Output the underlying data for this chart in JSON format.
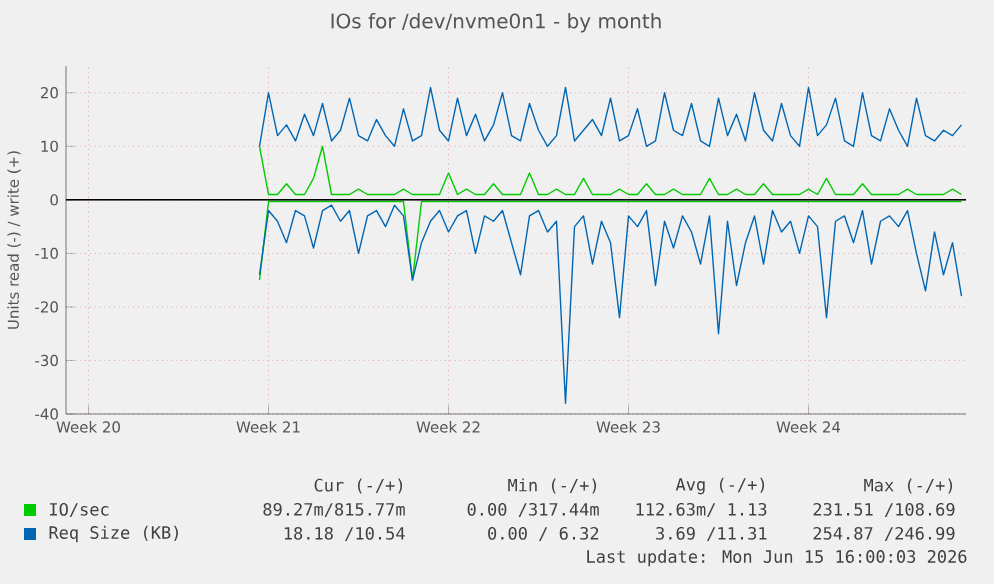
{
  "chart_data": {
    "type": "line",
    "title": "IOs for /dev/nvme0n1 - by month",
    "ylabel": "Units read (-) / write (+)",
    "categories": [
      null,
      null,
      "Week 20",
      null,
      null,
      null,
      null,
      null,
      null,
      null,
      null,
      null,
      null,
      null,
      null,
      null,
      null,
      null,
      null,
      null,
      null,
      null,
      "Week 21",
      null,
      null,
      null,
      null,
      null,
      null,
      null,
      null,
      null,
      null,
      null,
      null,
      null,
      null,
      null,
      null,
      null,
      null,
      null,
      "Week 22",
      null,
      null,
      null,
      null,
      null,
      null,
      null,
      null,
      null,
      null,
      null,
      null,
      null,
      null,
      null,
      null,
      null,
      null,
      null,
      "Week 23",
      null,
      null,
      null,
      null,
      null,
      null,
      null,
      null,
      null,
      null,
      null,
      null,
      null,
      null,
      null,
      null,
      null,
      null,
      null,
      "Week 24",
      null,
      null,
      null,
      null,
      null,
      null,
      null,
      null,
      null,
      null,
      null,
      null,
      null,
      null,
      null,
      null,
      null
    ],
    "series": [
      {
        "name": "IO/sec",
        "color": "#00cc00",
        "values": [
          null,
          null,
          null,
          null,
          null,
          null,
          null,
          null,
          null,
          null,
          null,
          null,
          null,
          null,
          null,
          null,
          null,
          null,
          null,
          null,
          null,
          10,
          1,
          1,
          3,
          1,
          1,
          4,
          10,
          1,
          1,
          1,
          2,
          1,
          1,
          1,
          1,
          2,
          1,
          1,
          1,
          1,
          5,
          1,
          2,
          1,
          1,
          3,
          1,
          1,
          1,
          5,
          1,
          1,
          2,
          1,
          1,
          4,
          1,
          1,
          1,
          2,
          1,
          1,
          3,
          1,
          1,
          2,
          1,
          1,
          1,
          4,
          1,
          1,
          2,
          1,
          1,
          3,
          1,
          1,
          1,
          1,
          2,
          1,
          4,
          1,
          1,
          1,
          3,
          1,
          1,
          1,
          1,
          2,
          1,
          1,
          1,
          1,
          2,
          1
        ]
      },
      {
        "color": "#00cc00",
        "values": [
          null,
          null,
          null,
          null,
          null,
          null,
          null,
          null,
          null,
          null,
          null,
          null,
          null,
          null,
          null,
          null,
          null,
          null,
          null,
          null,
          null,
          -15,
          -0.3,
          -0.3,
          -0.3,
          -0.3,
          -0.3,
          -0.3,
          -0.3,
          -0.3,
          -0.3,
          -0.3,
          -0.3,
          -0.3,
          -0.3,
          -0.3,
          -0.3,
          -0.3,
          -15,
          -0.3,
          -0.3,
          -0.3,
          -0.3,
          -0.3,
          -0.3,
          -0.3,
          -0.3,
          -0.3,
          -0.3,
          -0.3,
          -0.3,
          -0.3,
          -0.3,
          -0.3,
          -0.3,
          -0.3,
          -0.3,
          -0.3,
          -0.3,
          -0.3,
          -0.3,
          -0.3,
          -0.3,
          -0.3,
          -0.3,
          -0.3,
          -0.3,
          -0.3,
          -0.3,
          -0.3,
          -0.3,
          -0.3,
          -0.3,
          -0.3,
          -0.3,
          -0.3,
          -0.3,
          -0.3,
          -0.3,
          -0.3,
          -0.3,
          -0.3,
          -0.3,
          -0.3,
          -0.3,
          -0.3,
          -0.3,
          -0.3,
          -0.3,
          -0.3,
          -0.3,
          -0.3,
          -0.3,
          -0.3,
          -0.3,
          -0.3,
          -0.3,
          -0.3,
          -0.3,
          -0.3
        ]
      },
      {
        "name": "Req Size (KB)",
        "color": "#0066b3",
        "values": [
          null,
          null,
          null,
          null,
          null,
          null,
          null,
          null,
          null,
          null,
          null,
          null,
          null,
          null,
          null,
          null,
          null,
          null,
          null,
          null,
          null,
          10,
          20,
          12,
          14,
          11,
          16,
          12,
          18,
          11,
          13,
          19,
          12,
          11,
          15,
          12,
          10,
          17,
          11,
          12,
          21,
          13,
          11,
          19,
          12,
          16,
          11,
          14,
          20,
          12,
          11,
          18,
          13,
          10,
          12,
          21,
          11,
          13,
          15,
          12,
          19,
          11,
          12,
          17,
          10,
          11,
          20,
          13,
          12,
          18,
          11,
          10,
          19,
          12,
          16,
          11,
          20,
          13,
          11,
          18,
          12,
          10,
          21,
          12,
          14,
          19,
          11,
          10,
          20,
          12,
          11,
          17,
          13,
          10,
          19,
          12,
          11,
          13,
          12,
          14
        ]
      },
      {
        "color": "#0066b3",
        "values": [
          null,
          null,
          null,
          null,
          null,
          null,
          null,
          null,
          null,
          null,
          null,
          null,
          null,
          null,
          null,
          null,
          null,
          null,
          null,
          null,
          null,
          -14,
          -2,
          -4,
          -8,
          -2,
          -3,
          -9,
          -2,
          -1,
          -4,
          -2,
          -10,
          -3,
          -2,
          -5,
          -1,
          -3,
          -15,
          -8,
          -4,
          -2,
          -6,
          -3,
          -2,
          -10,
          -3,
          -4,
          -2,
          -8,
          -14,
          -3,
          -2,
          -6,
          -4,
          -38,
          -5,
          -3,
          -12,
          -4,
          -8,
          -22,
          -3,
          -5,
          -2,
          -16,
          -4,
          -9,
          -3,
          -6,
          -12,
          -3,
          -25,
          -4,
          -16,
          -8,
          -3,
          -12,
          -2,
          -6,
          -4,
          -10,
          -3,
          -5,
          -22,
          -4,
          -3,
          -8,
          -2,
          -12,
          -4,
          -3,
          -5,
          -2,
          -10,
          -17,
          -6,
          -14,
          -8,
          -18
        ]
      }
    ],
    "ylim": [
      -40,
      25
    ],
    "yticks": [
      -40,
      -30,
      -20,
      -10,
      0,
      10,
      20
    ],
    "grid": true,
    "legend": "bottom",
    "ref_lines": [
      {
        "axis": "y",
        "value": 0,
        "color": "#000000"
      }
    ],
    "annotations": [
      "Cur (-/+)",
      "Min (-/+)",
      "Avg (-/+)",
      "Max (-/+)",
      "89.27m/815.77m",
      "0.00 /317.44m",
      "112.63m/ 1.13",
      "231.51 /108.69",
      "18.18 /10.54",
      "0.00 / 6.32",
      "3.69 /11.31",
      "254.87 /246.99",
      "Last update: Mon Jun 15 16:00:03 2026"
    ]
  }
}
